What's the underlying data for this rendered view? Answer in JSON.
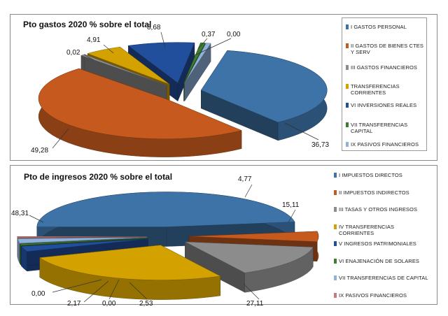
{
  "colors": {
    "blue": "#3e73a8",
    "orange": "#c65a1e",
    "gray": "#8c8c8c",
    "gold": "#d3a200",
    "navy": "#224f9c",
    "green": "#3c7d2e",
    "lightblue": "#8fb2dc",
    "rose": "#c97b7b"
  },
  "chart_data": [
    {
      "type": "pie",
      "style": "3d-exploded",
      "title": "Pto gastos 2020 % sobre el total",
      "legend_position": "right",
      "series": [
        {
          "name": "I GASTOS PERSONAL",
          "value": 36.73,
          "label": "36,73",
          "color": "#3e73a8"
        },
        {
          "name": "II GASTOS DE BIENES CTES Y SERV",
          "value": 49.28,
          "label": "49,28",
          "color": "#c65a1e"
        },
        {
          "name": "III GASTOS FINANCIEROS",
          "value": 0.02,
          "label": "0,02",
          "color": "#8c8c8c"
        },
        {
          "name": "TRANSFERENCIAS CORRIENTES",
          "value": 4.91,
          "label": "4,91",
          "color": "#d3a200"
        },
        {
          "name": "VI INVERSIONES REALES",
          "value": 8.68,
          "label": "8,68",
          "color": "#224f9c"
        },
        {
          "name": "VII TRANSFERENCIAS CAPITAL",
          "value": 0.37,
          "label": "0,37",
          "color": "#3c7d2e"
        },
        {
          "name": "IX PASIVOS FINANCIEROS",
          "value": 0.0,
          "label": "0,00",
          "color": "#8fb2dc"
        }
      ]
    },
    {
      "type": "pie",
      "style": "3d-exploded",
      "title": "Pto de ingresos 2020 % sobre el total",
      "legend_position": "right",
      "series": [
        {
          "name": "I IMPUESTOS DIRECTOS",
          "value": 48.31,
          "label": "48,31",
          "color": "#3e73a8"
        },
        {
          "name": "II IMPUESTOS INDIRECTOS",
          "value": 4.77,
          "label": "4,77",
          "color": "#c65a1e"
        },
        {
          "name": "III TASAS Y OTROS INGRESOS",
          "value": 15.11,
          "label": "15,11",
          "color": "#8c8c8c"
        },
        {
          "name": "IV TRANSFERENCIAS CORRIENTES",
          "value": 27.11,
          "label": "27,11",
          "color": "#d3a200"
        },
        {
          "name": "V INGRESOS PATRIMONIALES",
          "value": 2.53,
          "label": "2,53",
          "color": "#224f9c"
        },
        {
          "name": "VI ENAJENACIÓN DE SOLARES",
          "value": 0.0,
          "label": "0,00",
          "color": "#3c7d2e"
        },
        {
          "name": "VII TRANSFERENCIAS DE CAPITAL",
          "value": 2.17,
          "label": "2,17",
          "color": "#8fb2dc"
        },
        {
          "name": "IX PASIVOS FINANCIEROS",
          "value": 0.0,
          "label": "0,00",
          "color": "#c97b7b"
        }
      ]
    }
  ]
}
